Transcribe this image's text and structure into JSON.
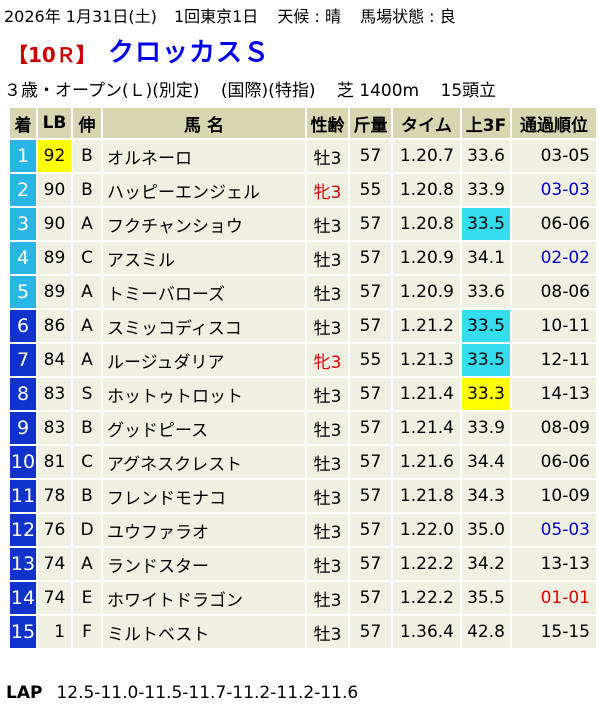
{
  "header": {
    "date": "2026年 1月31日(土)",
    "meeting": "1回東京1日",
    "weather": "天候 : 晴",
    "going": "馬場状態 : 良",
    "race_no": "【10Ｒ】",
    "race_name": "クロッカスＳ",
    "cls": "３歳・オープン(Ｌ)(別定)",
    "intl": "(国際)(特指)",
    "course": "芝 1400m",
    "runners": "15頭立"
  },
  "columns": [
    "着",
    "LB",
    "伸",
    "馬 名",
    "性齢",
    "斤量",
    "タイム",
    "上3F",
    "通過順位"
  ],
  "frame_colors": {
    "1": "#29b6e6",
    "2": "#29b6e6",
    "3": "#29b6e6",
    "4": "#29b6e6",
    "5": "#29b6e6",
    "6": "#1133cc",
    "7": "#1133cc",
    "8": "#1133cc",
    "9": "#1133cc",
    "10": "#1133cc",
    "11": "#1133cc",
    "12": "#1133cc",
    "13": "#1133cc",
    "14": "#1133cc",
    "15": "#1133cc"
  },
  "rows": [
    {
      "pos": "1",
      "lb": "92",
      "nobi": "B",
      "name": "オルネーロ",
      "sexage": "牡3",
      "weight": "57",
      "time": "1.20.7",
      "f3": "33.6",
      "passing": "03-05",
      "lb_hl": "y",
      "sex_color": "",
      "f3_hl": "",
      "pass_color": ""
    },
    {
      "pos": "2",
      "lb": "90",
      "nobi": "B",
      "name": "ハッピーエンジェル",
      "sexage": "牝3",
      "weight": "55",
      "time": "1.20.8",
      "f3": "33.9",
      "passing": "03-03",
      "lb_hl": "",
      "sex_color": "red",
      "f3_hl": "",
      "pass_color": "blue"
    },
    {
      "pos": "3",
      "lb": "90",
      "nobi": "A",
      "name": "フクチャンショウ",
      "sexage": "牡3",
      "weight": "57",
      "time": "1.20.8",
      "f3": "33.5",
      "passing": "06-06",
      "lb_hl": "",
      "sex_color": "",
      "f3_hl": "c",
      "pass_color": ""
    },
    {
      "pos": "4",
      "lb": "89",
      "nobi": "C",
      "name": "アスミル",
      "sexage": "牡3",
      "weight": "57",
      "time": "1.20.9",
      "f3": "34.1",
      "passing": "02-02",
      "lb_hl": "",
      "sex_color": "",
      "f3_hl": "",
      "pass_color": "blue"
    },
    {
      "pos": "5",
      "lb": "89",
      "nobi": "A",
      "name": "トミーバローズ",
      "sexage": "牡3",
      "weight": "57",
      "time": "1.20.9",
      "f3": "33.6",
      "passing": "08-06",
      "lb_hl": "",
      "sex_color": "",
      "f3_hl": "",
      "pass_color": ""
    },
    {
      "pos": "6",
      "lb": "86",
      "nobi": "A",
      "name": "スミッコディスコ",
      "sexage": "牡3",
      "weight": "57",
      "time": "1.21.2",
      "f3": "33.5",
      "passing": "10-11",
      "lb_hl": "",
      "sex_color": "",
      "f3_hl": "c",
      "pass_color": ""
    },
    {
      "pos": "7",
      "lb": "84",
      "nobi": "A",
      "name": "ルージュダリア",
      "sexage": "牝3",
      "weight": "55",
      "time": "1.21.3",
      "f3": "33.5",
      "passing": "12-11",
      "lb_hl": "",
      "sex_color": "red",
      "f3_hl": "c",
      "pass_color": ""
    },
    {
      "pos": "8",
      "lb": "83",
      "nobi": "S",
      "name": "ホットゥトロット",
      "sexage": "牡3",
      "weight": "57",
      "time": "1.21.4",
      "f3": "33.3",
      "passing": "14-13",
      "lb_hl": "",
      "sex_color": "",
      "f3_hl": "y",
      "pass_color": ""
    },
    {
      "pos": "9",
      "lb": "83",
      "nobi": "B",
      "name": "グッドピース",
      "sexage": "牡3",
      "weight": "57",
      "time": "1.21.4",
      "f3": "33.9",
      "passing": "08-09",
      "lb_hl": "",
      "sex_color": "",
      "f3_hl": "",
      "pass_color": ""
    },
    {
      "pos": "10",
      "lb": "81",
      "nobi": "C",
      "name": "アグネスクレスト",
      "sexage": "牡3",
      "weight": "57",
      "time": "1.21.6",
      "f3": "34.4",
      "passing": "06-06",
      "lb_hl": "",
      "sex_color": "",
      "f3_hl": "",
      "pass_color": ""
    },
    {
      "pos": "11",
      "lb": "78",
      "nobi": "B",
      "name": "フレンドモナコ",
      "sexage": "牡3",
      "weight": "57",
      "time": "1.21.8",
      "f3": "34.3",
      "passing": "10-09",
      "lb_hl": "",
      "sex_color": "",
      "f3_hl": "",
      "pass_color": ""
    },
    {
      "pos": "12",
      "lb": "76",
      "nobi": "D",
      "name": "ユウファラオ",
      "sexage": "牡3",
      "weight": "57",
      "time": "1.22.0",
      "f3": "35.0",
      "passing": "05-03",
      "lb_hl": "",
      "sex_color": "",
      "f3_hl": "",
      "pass_color": "blue"
    },
    {
      "pos": "13",
      "lb": "74",
      "nobi": "A",
      "name": "ランドスター",
      "sexage": "牡3",
      "weight": "57",
      "time": "1.22.2",
      "f3": "34.2",
      "passing": "13-13",
      "lb_hl": "",
      "sex_color": "",
      "f3_hl": "",
      "pass_color": ""
    },
    {
      "pos": "14",
      "lb": "74",
      "nobi": "E",
      "name": "ホワイトドラゴン",
      "sexage": "牡3",
      "weight": "57",
      "time": "1.22.2",
      "f3": "35.5",
      "passing": "01-01",
      "lb_hl": "",
      "sex_color": "",
      "f3_hl": "",
      "pass_color": "red"
    },
    {
      "pos": "15",
      "lb": "1",
      "nobi": "F",
      "name": "ミルトベスト",
      "sexage": "牡3",
      "weight": "57",
      "time": "1.36.4",
      "f3": "42.8",
      "passing": "15-15",
      "lb_hl": "",
      "sex_color": "",
      "f3_hl": "",
      "pass_color": ""
    }
  ],
  "lap": {
    "label": "LAP",
    "value": "12.5-11.0-11.5-11.7-11.2-11.2-11.6"
  }
}
